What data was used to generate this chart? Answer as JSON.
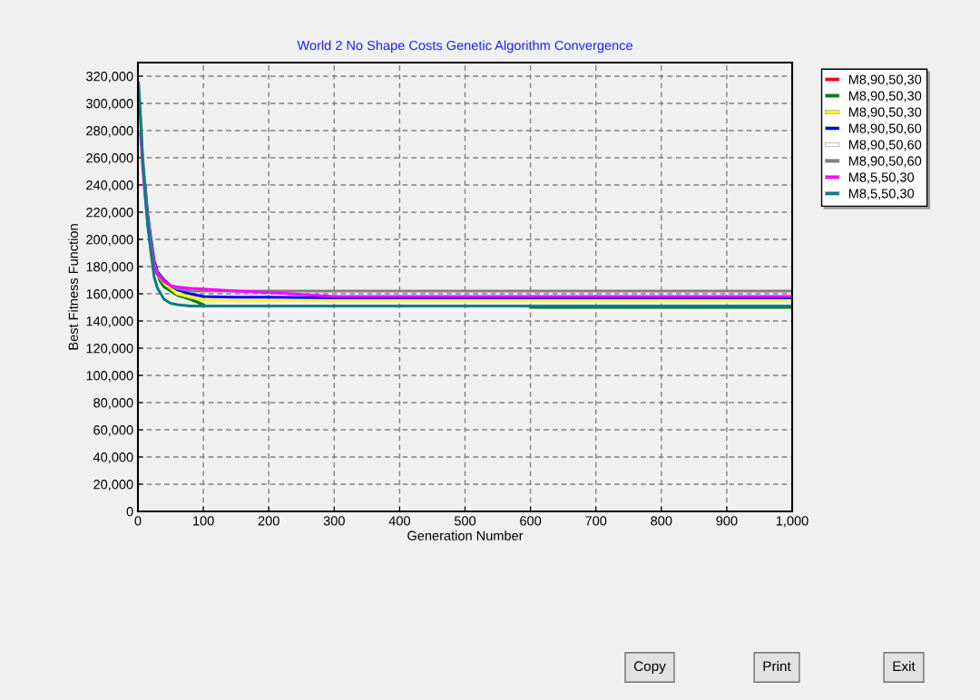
{
  "chart_data": {
    "type": "line",
    "title": "World 2 No Shape Costs Genetic Algorithm Convergence",
    "xlabel": "Generation Number",
    "ylabel": "Best Fitness Function",
    "x": [
      1,
      4,
      7,
      11,
      15,
      20,
      25,
      30,
      40,
      50,
      60,
      80,
      100,
      150,
      200,
      300,
      500,
      600,
      1000
    ],
    "series": [
      {
        "name": "M8,90,50,30",
        "color": "#ff0000",
        "values": [
          null,
          null,
          null,
          null,
          null,
          null,
          null,
          null,
          null,
          null,
          null,
          null,
          null,
          null,
          null,
          null,
          null,
          null,
          null
        ]
      },
      {
        "name": "M8,90,50,30",
        "color": "#008000",
        "values": [
          null,
          null,
          null,
          null,
          null,
          null,
          null,
          172000,
          165000,
          162000,
          159000,
          156000,
          152000,
          null,
          null,
          null,
          null,
          149000,
          149000
        ]
      },
      {
        "name": "M8,90,50,30",
        "color": "#ffff00",
        "values": [
          null,
          null,
          null,
          null,
          null,
          null,
          null,
          174000,
          168000,
          164000,
          160000,
          157500,
          155500,
          155000,
          155000,
          155000,
          155000,
          155000,
          155000
        ]
      },
      {
        "name": "M8,90,50,60",
        "color": "#0000ff",
        "values": [
          null,
          null,
          null,
          240000,
          218000,
          200000,
          184000,
          176000,
          170000,
          166000,
          163000,
          160000,
          158000,
          157500,
          157500,
          157000,
          157000,
          157000,
          157000
        ]
      },
      {
        "name": "M8,90,50,60",
        "color": "#ffffff",
        "values": [
          304000,
          280000,
          255000,
          232000,
          210000,
          190000,
          176000,
          168000,
          158000,
          153000,
          150000,
          148000,
          148000,
          148000,
          148000,
          148000,
          148000,
          148000,
          148000
        ]
      },
      {
        "name": "M8,90,50,60",
        "color": "#808080",
        "values": [
          310000,
          287000,
          262000,
          239000,
          216000,
          197000,
          182000,
          175000,
          169000,
          166000,
          164000,
          162000,
          162000,
          162000,
          162000,
          162000,
          162000,
          162000,
          162000
        ]
      },
      {
        "name": "M8,5,50,30",
        "color": "#ff00ff",
        "values": [
          null,
          278000,
          255000,
          232000,
          212000,
          193000,
          179000,
          174000,
          169000,
          166000,
          165000,
          164000,
          163500,
          162000,
          161000,
          158000,
          158000,
          158000,
          158000
        ]
      },
      {
        "name": "M8,5,50,30",
        "color": "#008080",
        "values": [
          315000,
          290000,
          260000,
          234000,
          210000,
          190000,
          172000,
          164000,
          156000,
          153000,
          152000,
          151000,
          151000,
          151000,
          151000,
          151000,
          151000,
          151000,
          151000
        ]
      }
    ],
    "xlim": [
      0,
      1000
    ],
    "xticks": [
      0,
      100,
      200,
      300,
      400,
      500,
      600,
      700,
      800,
      900,
      {
        "value": 1000,
        "label": "1,000"
      }
    ],
    "ylim": [
      0,
      330000
    ],
    "yticks": [
      0,
      {
        "value": 20000,
        "label": "20,000"
      },
      {
        "value": 40000,
        "label": "40,000"
      },
      {
        "value": 60000,
        "label": "60,000"
      },
      {
        "value": 80000,
        "label": "80,000"
      },
      {
        "value": 100000,
        "label": "100,000"
      },
      {
        "value": 120000,
        "label": "120,000"
      },
      {
        "value": 140000,
        "label": "140,000"
      },
      {
        "value": 160000,
        "label": "160,000"
      },
      {
        "value": 180000,
        "label": "180,000"
      },
      {
        "value": 200000,
        "label": "200,000"
      },
      {
        "value": 220000,
        "label": "220,000"
      },
      {
        "value": 240000,
        "label": "240,000"
      },
      {
        "value": 260000,
        "label": "260,000"
      },
      {
        "value": 280000,
        "label": "280,000"
      },
      {
        "value": 300000,
        "label": "300,000"
      },
      {
        "value": 320000,
        "label": "320,000"
      }
    ],
    "grid": true,
    "legend": "right",
    "marker": "none",
    "line_style": "solid",
    "annotations": [
      "Copy",
      "Print",
      "Exit"
    ]
  }
}
